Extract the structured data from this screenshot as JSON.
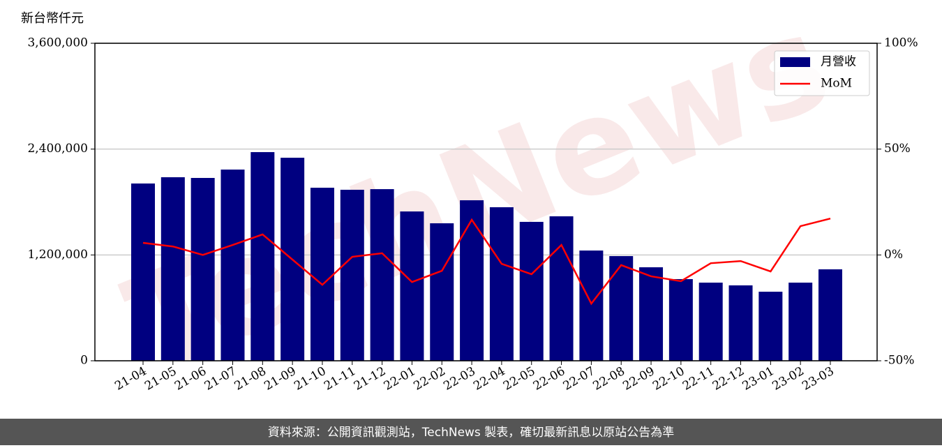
{
  "chart_data": {
    "type": "bar",
    "y_label": "新台幣仟元",
    "watermark": "TechNews",
    "source": "資料來源：公開資訊觀測站，TechNews 製表，確切最新訊息以原站公告為準",
    "categories": [
      "21-04",
      "21-05",
      "21-06",
      "21-07",
      "21-08",
      "21-09",
      "21-10",
      "21-11",
      "21-12",
      "22-01",
      "22-02",
      "22-03",
      "22-04",
      "22-05",
      "22-06",
      "22-07",
      "22-08",
      "22-09",
      "22-10",
      "22-11",
      "22-12",
      "23-01",
      "23-02",
      "23-03"
    ],
    "series": [
      {
        "name": "月營收",
        "type": "bar",
        "color": "#000080",
        "values": [
          2010000,
          2081000,
          2073000,
          2168000,
          2366000,
          2302000,
          1962000,
          1939000,
          1946000,
          1693000,
          1559000,
          1820000,
          1741000,
          1575000,
          1638000,
          1250000,
          1187000,
          1060000,
          926000,
          886000,
          855000,
          783000,
          886000,
          1037000
        ]
      },
      {
        "name": "MoM",
        "type": "line",
        "axis": "y2",
        "color": "#ff0000",
        "values": [
          5.7,
          4.0,
          0.0,
          4.7,
          9.7,
          -2.2,
          -14.1,
          -0.9,
          0.8,
          -12.8,
          -7.5,
          16.6,
          -4.2,
          -9.1,
          4.7,
          -23.0,
          -4.8,
          -10.1,
          -12.4,
          -3.9,
          -2.9,
          -7.8,
          13.6,
          17.2
        ]
      }
    ],
    "ylim": [
      0,
      3600000
    ],
    "yticks": [
      0,
      {
        "value": 1200000,
        "label": "1,200,000"
      },
      {
        "value": 2400000,
        "label": "2,400,000"
      },
      {
        "value": 3600000,
        "label": "3,600,000"
      }
    ],
    "y2lim": [
      -50,
      100
    ],
    "y2ticks": [
      {
        "value": -50,
        "label": "-50%"
      },
      {
        "value": 0,
        "label": "0%"
      },
      {
        "value": 50,
        "label": "50%"
      },
      {
        "value": 100,
        "label": "100%"
      }
    ],
    "grid": true,
    "legend": "upper right"
  }
}
